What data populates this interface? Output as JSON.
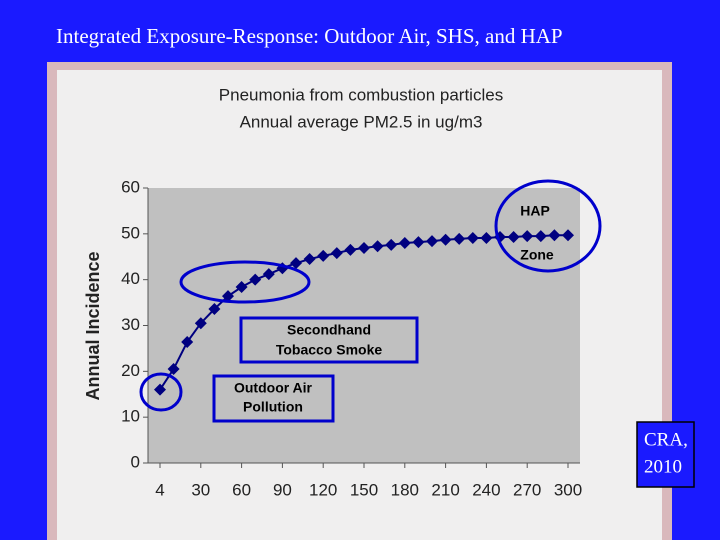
{
  "slide_title": "Integrated Exposure-Response: Outdoor Air, SHS, and HAP",
  "citation": [
    "CRA,",
    "2010"
  ],
  "chart_data": {
    "type": "line",
    "title": "Pneumonia from combustion particles",
    "subtitle": "Annual average PM2.5 in ug/m3",
    "y_label": "Annual Incidence",
    "categories": [
      "4",
      null,
      null,
      "30",
      null,
      null,
      "60",
      null,
      null,
      "90",
      null,
      null,
      "120",
      null,
      null,
      "150",
      null,
      null,
      "180",
      null,
      null,
      "210",
      null,
      null,
      "240",
      null,
      null,
      "270",
      null,
      null,
      "300"
    ],
    "series": [
      {
        "name": "Pneumonia",
        "color": "#000080",
        "values": [
          16,
          20.5,
          26.4,
          30.5,
          33.6,
          36.4,
          38.4,
          40,
          41.2,
          42.5,
          43.6,
          44.5,
          45.2,
          45.8,
          46.5,
          46.9,
          47.3,
          47.6,
          48,
          48.2,
          48.4,
          48.7,
          48.9,
          49.1,
          49.1,
          49.3,
          49.3,
          49.5,
          49.5,
          49.7,
          49.7
        ]
      }
    ],
    "ylim": [
      0,
      60
    ],
    "yticks": [
      0,
      10,
      20,
      30,
      40,
      50,
      60
    ],
    "annotations": {
      "hap": "HAP",
      "zone": "Zone",
      "shs": [
        "Secondhand",
        "Tobacco Smoke"
      ],
      "outdoor": [
        "Outdoor Air",
        "Pollution"
      ]
    }
  }
}
